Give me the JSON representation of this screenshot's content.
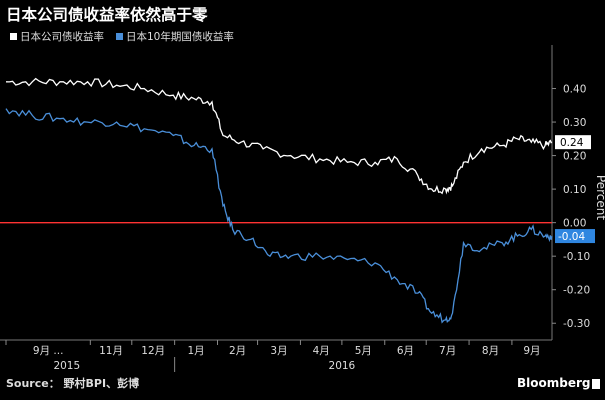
{
  "title": "日本公司债收益率依然高于零",
  "source": "Source： 野村BPI、彭博",
  "brand": "Bloomberg",
  "colors": {
    "series1": "#ffffff",
    "series2": "#4a8fd9",
    "zero_line": "#ff3333",
    "label2_bg": "#2f86e0"
  },
  "chart_data": {
    "type": "line",
    "ylabel": "Percent",
    "ylim": [
      -0.35,
      0.5
    ],
    "yticks": [
      0.4,
      0.3,
      0.2,
      0.1,
      0.0,
      -0.1,
      -0.2,
      -0.3
    ],
    "ytick_labels": [
      "0.40",
      "0.30",
      "0.20",
      "0.10",
      "0.00",
      "-0.10",
      "-0.20",
      "-0.30"
    ],
    "grid": false,
    "reference_line": 0,
    "x_range": [
      "2015-09-01",
      "2016-09-30"
    ],
    "x_month_ticks": [
      {
        "date": "2015-09-01",
        "label": "9月 ..."
      },
      {
        "date": "2015-11-01",
        "label": "11月"
      },
      {
        "date": "2015-12-01",
        "label": "12月"
      },
      {
        "date": "2016-01-01",
        "label": "1月"
      },
      {
        "date": "2016-02-01",
        "label": "2月"
      },
      {
        "date": "2016-03-01",
        "label": "3月"
      },
      {
        "date": "2016-04-01",
        "label": "4月"
      },
      {
        "date": "2016-05-01",
        "label": "5月"
      },
      {
        "date": "2016-06-01",
        "label": "6月"
      },
      {
        "date": "2016-07-01",
        "label": "7月"
      },
      {
        "date": "2016-08-01",
        "label": "8月"
      },
      {
        "date": "2016-09-01",
        "label": "9月"
      }
    ],
    "x_year_labels": [
      {
        "date": "2015-10-15",
        "label": "2015"
      },
      {
        "date": "2016-05-01",
        "label": "2016"
      }
    ],
    "last_value_labels": [
      "0.24",
      "-0.04"
    ],
    "series": [
      {
        "name": "日本公司债收益率",
        "x": [
          "2015-09-01",
          "2015-09-20",
          "2015-10-10",
          "2015-10-30",
          "2015-11-20",
          "2015-12-10",
          "2015-12-31",
          "2016-01-15",
          "2016-01-28",
          "2016-02-05",
          "2016-02-18",
          "2016-03-05",
          "2016-03-25",
          "2016-04-15",
          "2016-05-05",
          "2016-05-25",
          "2016-06-10",
          "2016-06-25",
          "2016-07-05",
          "2016-07-15",
          "2016-07-20",
          "2016-07-28",
          "2016-08-10",
          "2016-08-25",
          "2016-09-05",
          "2016-09-15",
          "2016-09-25",
          "2016-09-30"
        ],
        "values": [
          0.42,
          0.42,
          0.42,
          0.42,
          0.41,
          0.4,
          0.38,
          0.37,
          0.36,
          0.26,
          0.24,
          0.22,
          0.2,
          0.19,
          0.18,
          0.18,
          0.19,
          0.14,
          0.1,
          0.1,
          0.11,
          0.18,
          0.22,
          0.23,
          0.25,
          0.24,
          0.23,
          0.24
        ]
      },
      {
        "name": "日本10年期国债收益率",
        "x": [
          "2015-09-01",
          "2015-09-20",
          "2015-10-10",
          "2015-10-30",
          "2015-11-20",
          "2015-12-10",
          "2015-12-31",
          "2016-01-15",
          "2016-01-28",
          "2016-02-05",
          "2016-02-12",
          "2016-02-25",
          "2016-03-10",
          "2016-03-25",
          "2016-04-15",
          "2016-05-05",
          "2016-05-25",
          "2016-06-10",
          "2016-06-25",
          "2016-07-05",
          "2016-07-15",
          "2016-07-20",
          "2016-07-28",
          "2016-08-10",
          "2016-08-25",
          "2016-09-05",
          "2016-09-15",
          "2016-09-25",
          "2016-09-30"
        ],
        "values": [
          0.34,
          0.32,
          0.31,
          0.3,
          0.3,
          0.28,
          0.26,
          0.23,
          0.22,
          0.05,
          -0.02,
          -0.05,
          -0.1,
          -0.1,
          -0.1,
          -0.11,
          -0.12,
          -0.17,
          -0.21,
          -0.27,
          -0.29,
          -0.27,
          -0.06,
          -0.08,
          -0.06,
          -0.04,
          -0.02,
          -0.04,
          -0.04
        ]
      }
    ]
  }
}
